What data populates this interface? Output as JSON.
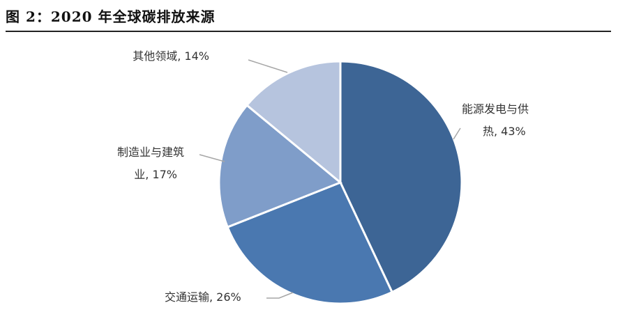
{
  "figure_title": "图 2：2020 年全球碳排放来源",
  "chart_data": {
    "type": "pie",
    "title": "",
    "slices": [
      {
        "label_lines": [
          "能源发电与供",
          "热, 43%"
        ],
        "value": 43,
        "color": "#3d6595"
      },
      {
        "label_lines": [
          "交通运输, 26%"
        ],
        "value": 26,
        "color": "#4a78b0"
      },
      {
        "label_lines": [
          "制造业与建筑",
          "业, 17%"
        ],
        "value": 17,
        "color": "#7f9dc9"
      },
      {
        "label_lines": [
          "其他领域, 14%"
        ],
        "value": 14,
        "color": "#b6c4de"
      }
    ]
  }
}
